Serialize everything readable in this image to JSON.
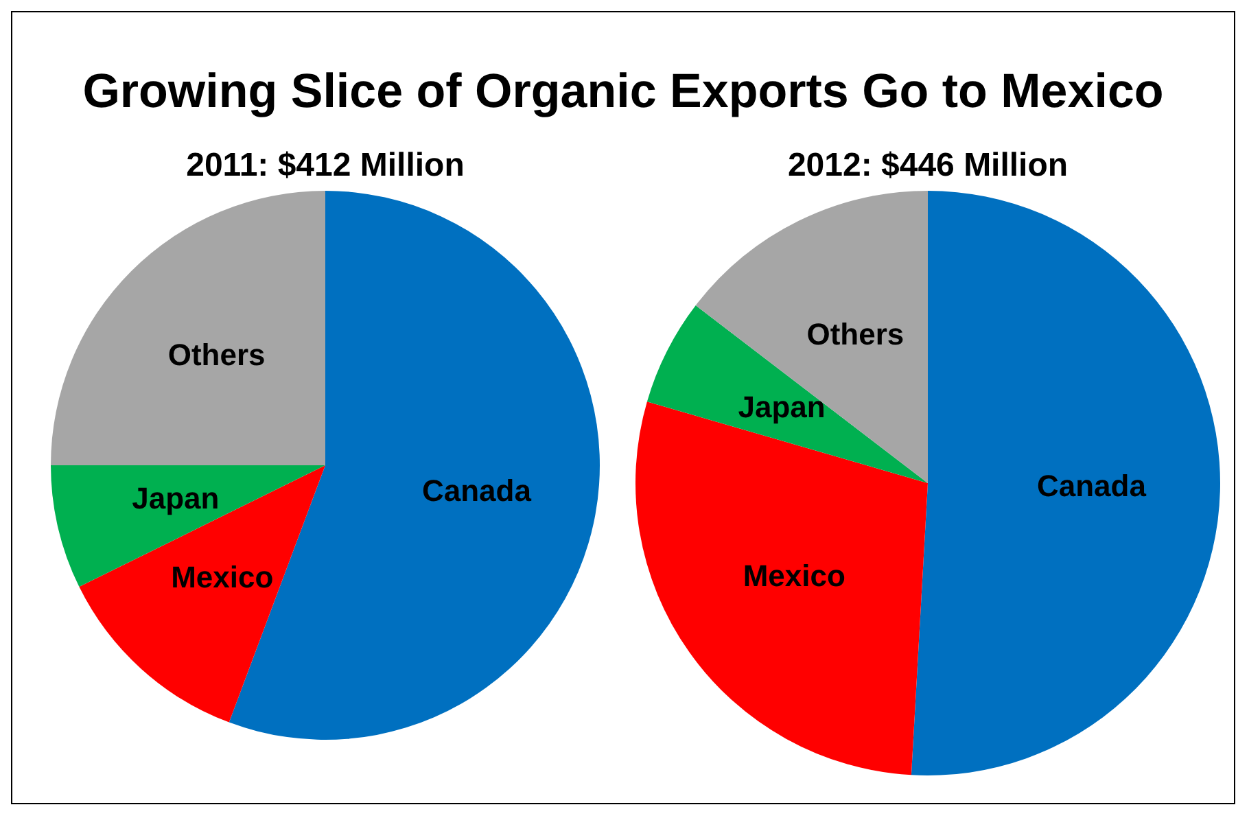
{
  "chart_data": [
    {
      "type": "pie",
      "title": "Growing Slice of Organic Exports Go to Mexico",
      "subtitle": "2011: $412 Million",
      "categories": [
        "Canada",
        "Mexico",
        "Japan",
        "Others"
      ],
      "values": [
        55.7,
        12,
        7.3,
        25
      ],
      "colors": [
        "#0070c0",
        "#ff0000",
        "#00b050",
        "#a6a6a6"
      ],
      "legend": false
    },
    {
      "type": "pie",
      "subtitle": "2012: $446 Million",
      "categories": [
        "Canada",
        "Mexico",
        "Japan",
        "Others"
      ],
      "values": [
        50.9,
        28.6,
        5.9,
        14.6
      ],
      "colors": [
        "#0070c0",
        "#ff0000",
        "#00b050",
        "#a6a6a6"
      ],
      "legend": false
    }
  ]
}
